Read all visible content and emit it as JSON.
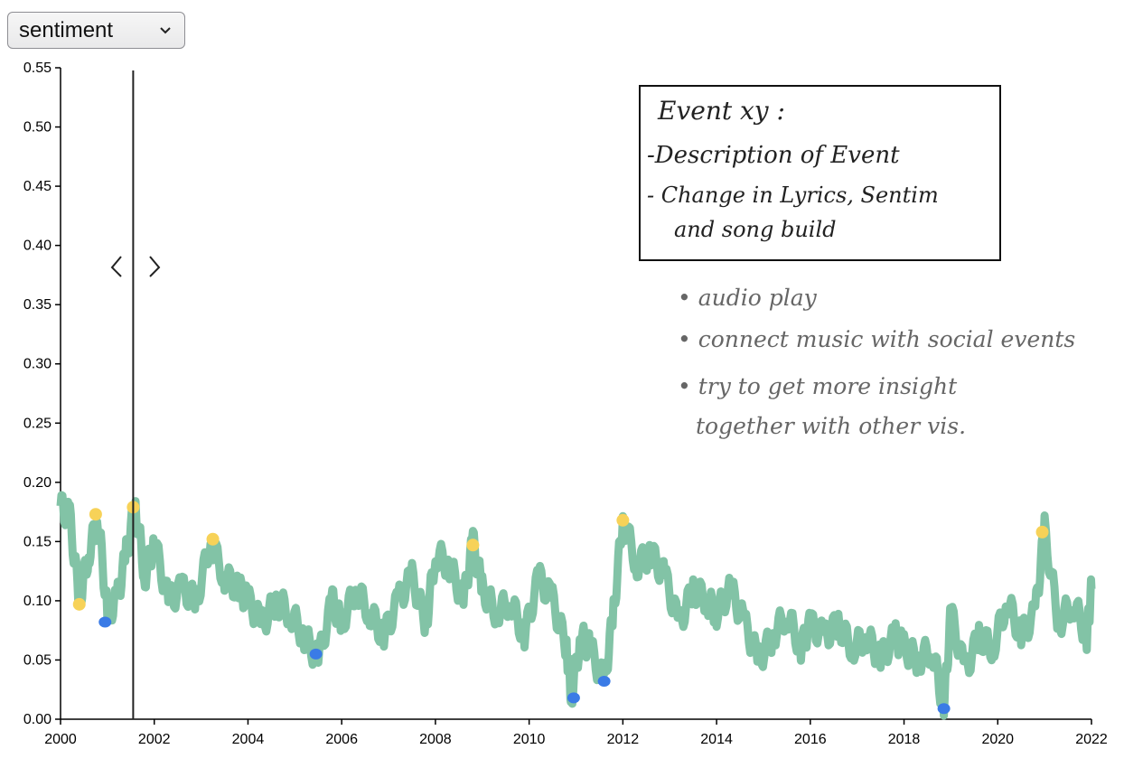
{
  "dropdown": {
    "selected": "sentiment"
  },
  "annotation_box": {
    "line1": "Event xy :",
    "line2": "-Description of Event",
    "line3": "- Change in Lyrics, Sentim",
    "line4": "and song build"
  },
  "notes": {
    "n1": "• audio play",
    "n2": "• connect music with social events",
    "n3": "• try to get more insight",
    "n4": "together with other vis."
  },
  "colors": {
    "line": "#82c3a6",
    "peak": "#f7d258",
    "trough": "#3a7be6"
  },
  "chart_data": {
    "type": "line",
    "xlim": [
      2000,
      2022
    ],
    "ylim": [
      0,
      0.55
    ],
    "x_ticks": [
      "2000",
      "2002",
      "2004",
      "2006",
      "2008",
      "2010",
      "2012",
      "2014",
      "2016",
      "2018",
      "2020",
      "2022"
    ],
    "y_ticks": [
      "0.00",
      "0.05",
      "0.10",
      "0.15",
      "0.20",
      "0.25",
      "0.30",
      "0.35",
      "0.40",
      "0.45",
      "0.50",
      "0.55"
    ],
    "cursor_x": 2001.55,
    "series": [
      {
        "x": [
          2000.0,
          2000.2,
          2000.4,
          2000.6,
          2000.8,
          2001.0,
          2001.2,
          2001.4,
          2001.6,
          2001.8,
          2002.0,
          2002.3,
          2002.6,
          2002.9,
          2003.2,
          2003.5,
          2003.8,
          2004.0,
          2004.3,
          2004.6,
          2004.9,
          2005.2,
          2005.5,
          2005.8,
          2006.0,
          2006.3,
          2006.6,
          2006.9,
          2007.2,
          2007.5,
          2007.8,
          2008.0,
          2008.3,
          2008.6,
          2008.8,
          2009.0,
          2009.3,
          2009.6,
          2009.9,
          2010.2,
          2010.5,
          2010.8,
          2010.9,
          2011.1,
          2011.3,
          2011.6,
          2011.8,
          2012.0,
          2012.3,
          2012.6,
          2012.9,
          2013.2,
          2013.5,
          2013.8,
          2014.0,
          2014.3,
          2014.6,
          2014.9,
          2015.2,
          2015.5,
          2015.8,
          2016.0,
          2016.3,
          2016.6,
          2016.9,
          2017.2,
          2017.5,
          2017.8,
          2018.0,
          2018.3,
          2018.6,
          2018.85,
          2019.0,
          2019.3,
          2019.6,
          2019.9,
          2020.2,
          2020.5,
          2020.8,
          2021.0,
          2021.3,
          2021.6,
          2021.9,
          2022.0
        ],
        "y": [
          0.18,
          0.17,
          0.1,
          0.14,
          0.17,
          0.09,
          0.1,
          0.14,
          0.18,
          0.12,
          0.15,
          0.1,
          0.11,
          0.1,
          0.15,
          0.12,
          0.11,
          0.1,
          0.08,
          0.1,
          0.09,
          0.07,
          0.05,
          0.1,
          0.08,
          0.11,
          0.09,
          0.07,
          0.1,
          0.12,
          0.08,
          0.14,
          0.13,
          0.1,
          0.15,
          0.11,
          0.09,
          0.1,
          0.07,
          0.12,
          0.1,
          0.06,
          0.02,
          0.07,
          0.06,
          0.03,
          0.09,
          0.17,
          0.13,
          0.14,
          0.12,
          0.08,
          0.11,
          0.1,
          0.09,
          0.11,
          0.08,
          0.05,
          0.07,
          0.09,
          0.06,
          0.08,
          0.07,
          0.08,
          0.06,
          0.07,
          0.05,
          0.07,
          0.06,
          0.05,
          0.06,
          0.01,
          0.09,
          0.04,
          0.07,
          0.06,
          0.1,
          0.07,
          0.09,
          0.16,
          0.08,
          0.1,
          0.07,
          0.11
        ]
      }
    ],
    "peaks": [
      {
        "x": 2000.75,
        "y": 0.173
      },
      {
        "x": 2001.55,
        "y": 0.179
      },
      {
        "x": 2003.25,
        "y": 0.152
      },
      {
        "x": 2008.8,
        "y": 0.147
      },
      {
        "x": 2012.0,
        "y": 0.168
      },
      {
        "x": 2020.95,
        "y": 0.158
      },
      {
        "x": 2000.4,
        "y": 0.097
      }
    ],
    "troughs": [
      {
        "x": 2000.95,
        "y": 0.082
      },
      {
        "x": 2005.45,
        "y": 0.055
      },
      {
        "x": 2010.95,
        "y": 0.018
      },
      {
        "x": 2011.6,
        "y": 0.032
      },
      {
        "x": 2018.85,
        "y": 0.009
      }
    ]
  }
}
